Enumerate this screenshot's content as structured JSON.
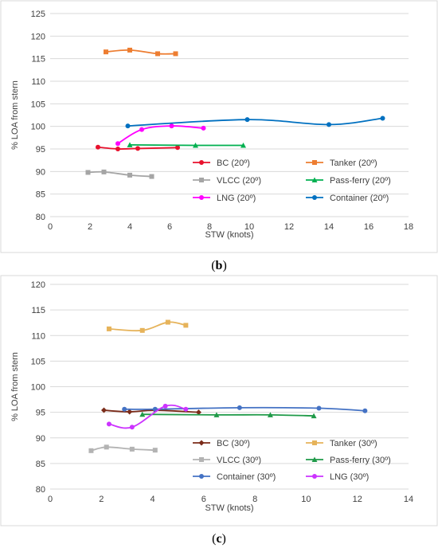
{
  "panels": [
    {
      "label_open": "(",
      "label_letter": "b",
      "label_close": ")"
    },
    {
      "label_open": "(",
      "label_letter": "c",
      "label_close": ")"
    }
  ],
  "chart_data": [
    {
      "type": "line",
      "xlabel": "STW (knots)",
      "ylabel": "% LOA from stern",
      "xlim": [
        0,
        18
      ],
      "ylim": [
        80,
        125
      ],
      "xticks": [
        0,
        2,
        4,
        6,
        8,
        10,
        12,
        14,
        16,
        18
      ],
      "yticks": [
        80,
        85,
        90,
        95,
        100,
        105,
        110,
        115,
        120,
        125
      ],
      "grid": "horizontal",
      "legend_position": "lower-right inside plot, two columns",
      "series": [
        {
          "name": "BC (20º)",
          "color": "#e8112d",
          "marker": "circle",
          "x": [
            2.4,
            3.4,
            4.4,
            6.4
          ],
          "y": [
            95.4,
            95.0,
            95.1,
            95.3
          ]
        },
        {
          "name": "Tanker (20º)",
          "color": "#ed7d31",
          "marker": "square",
          "x": [
            2.8,
            4.0,
            5.4,
            6.3
          ],
          "y": [
            116.5,
            116.9,
            116.1,
            116.1
          ]
        },
        {
          "name": "VLCC (20º)",
          "color": "#a5a5a5",
          "marker": "square",
          "x": [
            1.9,
            2.7,
            4.0,
            5.1
          ],
          "y": [
            89.8,
            89.9,
            89.2,
            88.9
          ]
        },
        {
          "name": "Pass-ferry (20º)",
          "color": "#00b050",
          "marker": "triangle",
          "x": [
            4.0,
            7.3,
            9.7
          ],
          "y": [
            95.9,
            95.8,
            95.8
          ]
        },
        {
          "name": "LNG (20º)",
          "color": "#ff00ff",
          "marker": "circle",
          "x": [
            3.4,
            4.6,
            6.1,
            7.7
          ],
          "y": [
            96.2,
            99.3,
            100.1,
            99.6
          ]
        },
        {
          "name": "Container (20º)",
          "color": "#0070c0",
          "marker": "circle",
          "x": [
            3.9,
            9.9,
            14.0,
            16.7
          ],
          "y": [
            100.1,
            101.5,
            100.4,
            101.8
          ]
        }
      ]
    },
    {
      "type": "line",
      "xlabel": "STW (knots)",
      "ylabel": "% LOA from stern",
      "xlim": [
        0,
        14
      ],
      "ylim": [
        80,
        120
      ],
      "xticks": [
        0,
        2,
        4,
        6,
        8,
        10,
        12,
        14
      ],
      "yticks": [
        80,
        85,
        90,
        95,
        100,
        105,
        110,
        115,
        120
      ],
      "grid": "horizontal",
      "legend_position": "lower-right inside plot, two columns",
      "series": [
        {
          "name": "BC (30º)",
          "color": "#7b2c1a",
          "marker": "diamond",
          "x": [
            2.1,
            3.1,
            4.1,
            5.8
          ],
          "y": [
            95.4,
            95.1,
            95.4,
            95.0
          ]
        },
        {
          "name": "Tanker (30º)",
          "color": "#e6b35a",
          "marker": "square",
          "x": [
            2.3,
            3.6,
            4.6,
            5.3
          ],
          "y": [
            111.3,
            111.0,
            112.6,
            112.0
          ]
        },
        {
          "name": "VLCC (30º)",
          "color": "#b3b3b3",
          "marker": "square",
          "x": [
            1.6,
            2.2,
            3.2,
            4.1
          ],
          "y": [
            87.5,
            88.2,
            87.8,
            87.6
          ]
        },
        {
          "name": "Pass-ferry (30º)",
          "color": "#1f9a48",
          "marker": "triangle",
          "x": [
            3.6,
            6.5,
            8.6,
            10.3
          ],
          "y": [
            94.6,
            94.5,
            94.5,
            94.3
          ]
        },
        {
          "name": "Container (30º)",
          "color": "#4472c4",
          "marker": "circle",
          "x": [
            2.9,
            4.1,
            7.4,
            10.5,
            12.3
          ],
          "y": [
            95.6,
            95.6,
            95.9,
            95.8,
            95.3
          ]
        },
        {
          "name": "LNG (30º)",
          "color": "#cc33ff",
          "marker": "circle",
          "x": [
            2.3,
            3.2,
            4.5,
            5.3
          ],
          "y": [
            92.7,
            92.1,
            96.2,
            95.6
          ]
        }
      ]
    }
  ]
}
